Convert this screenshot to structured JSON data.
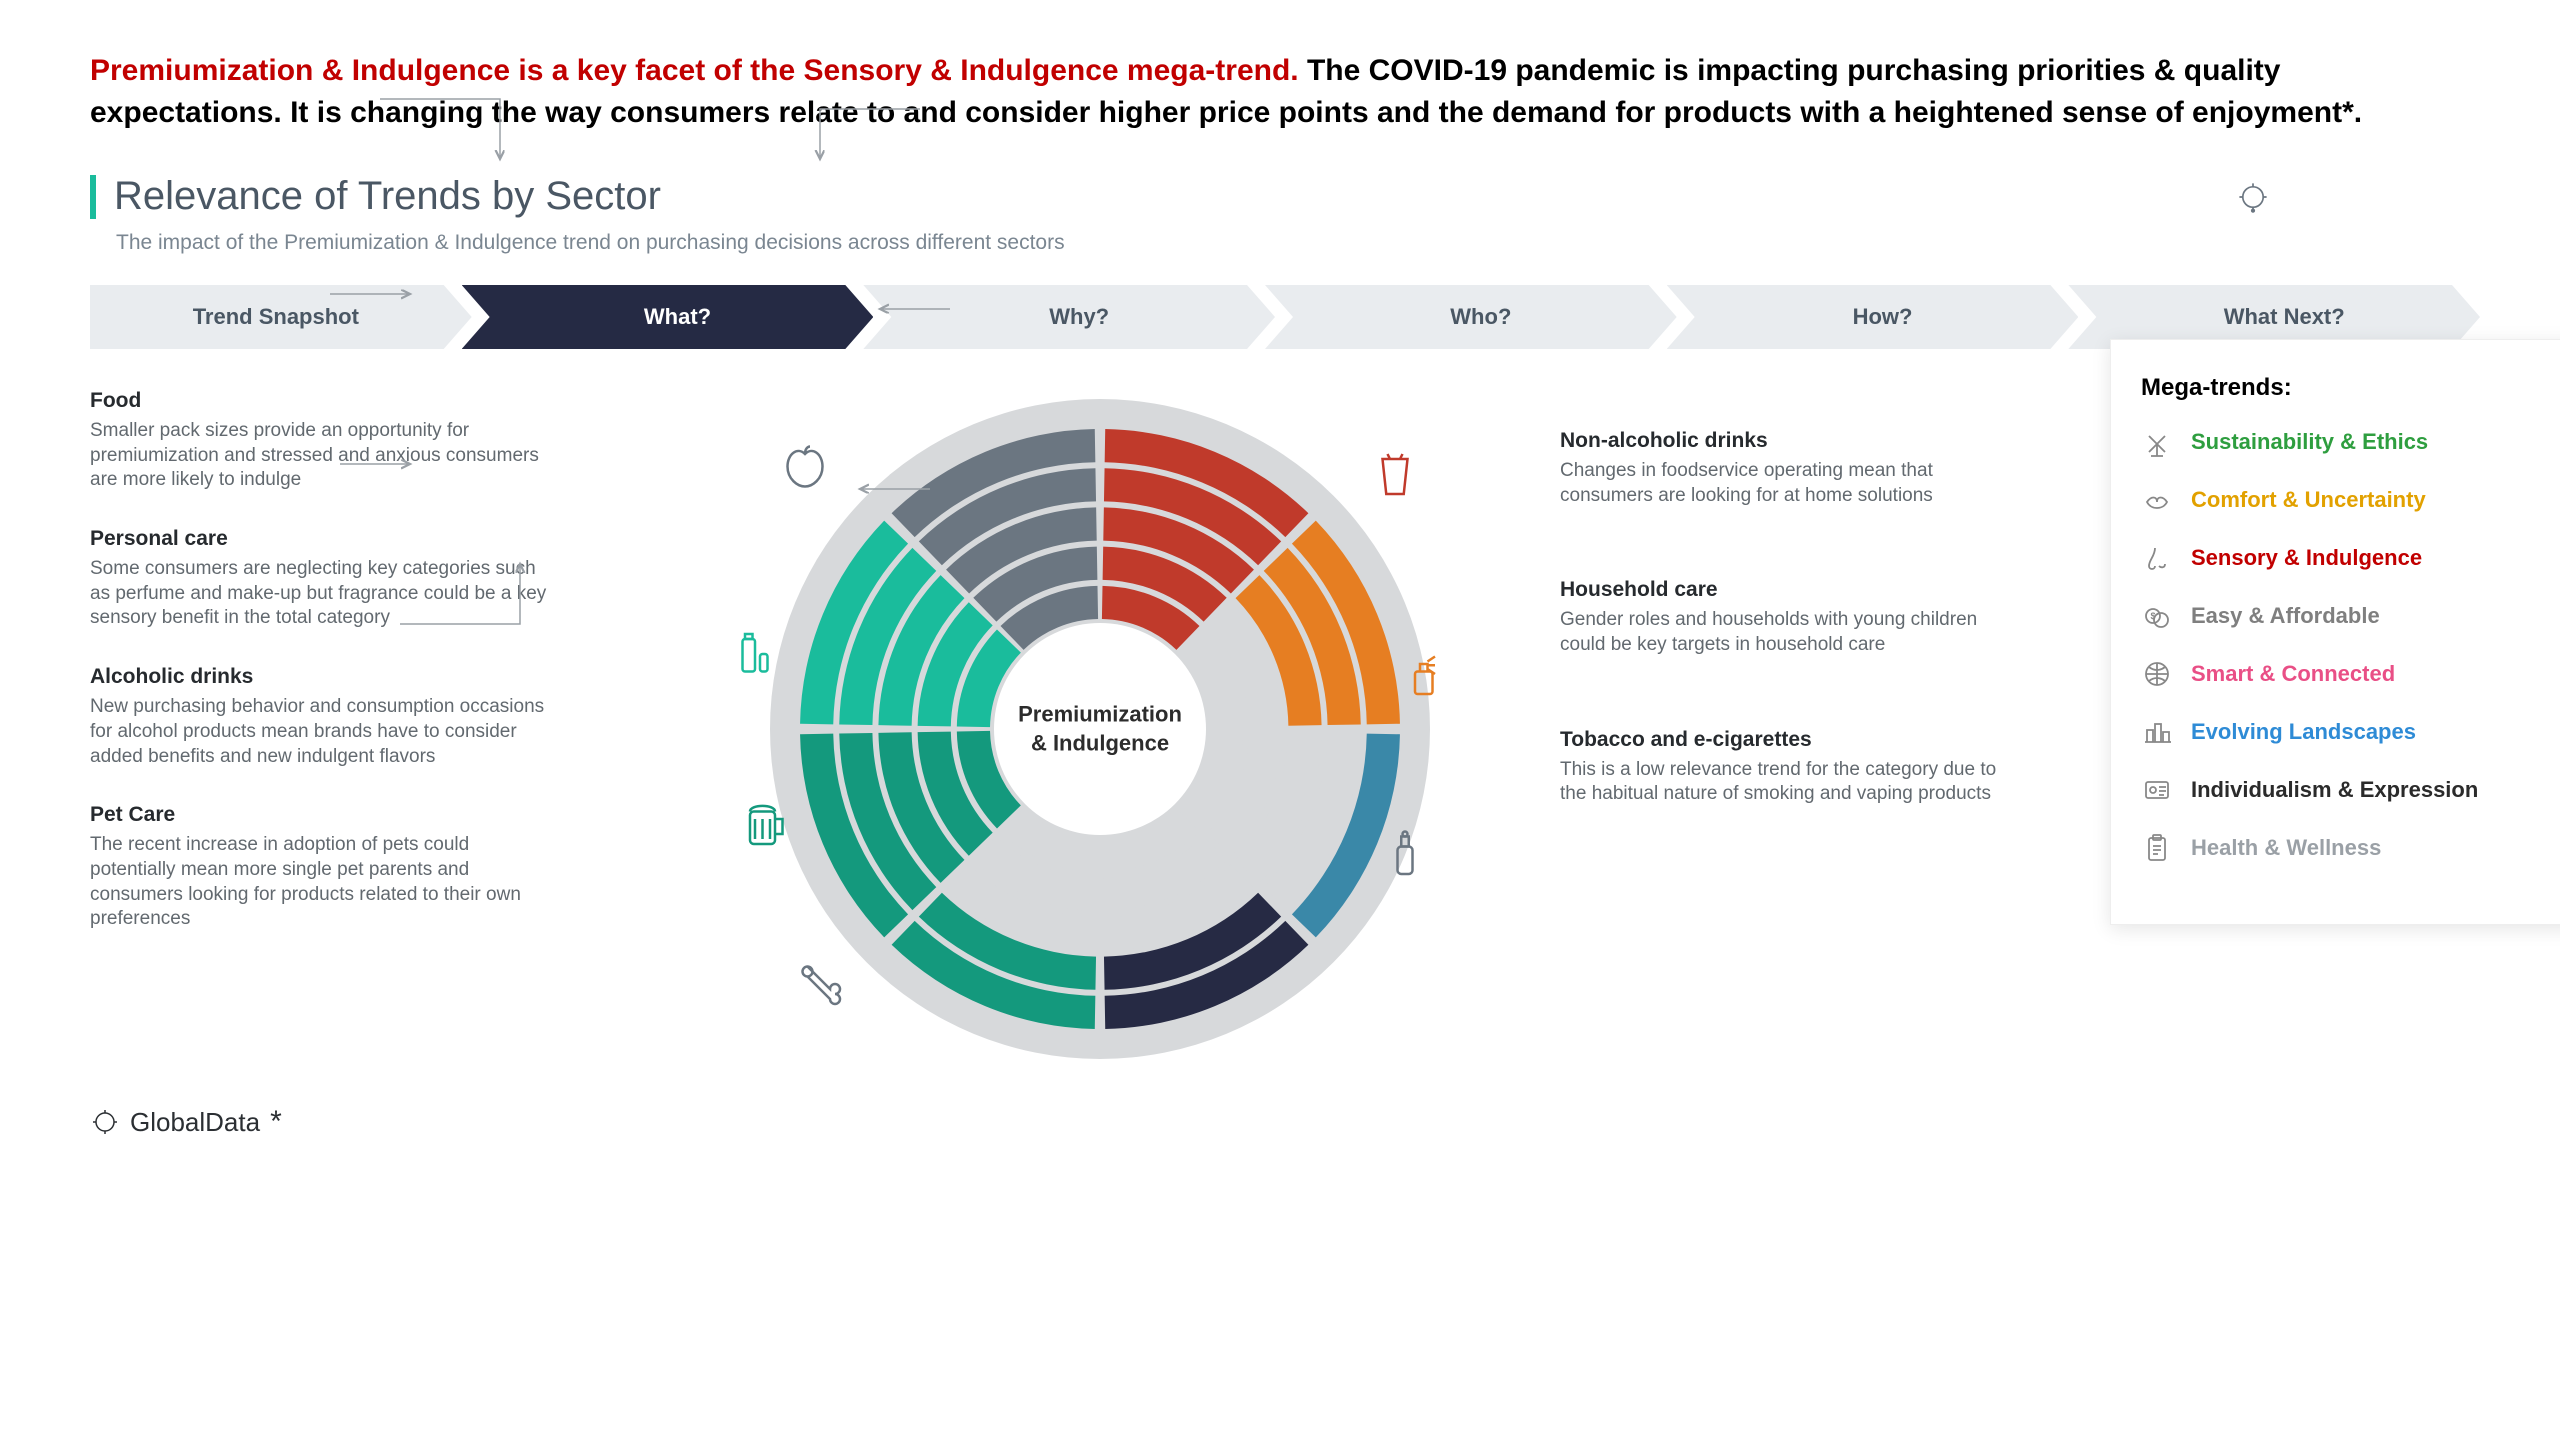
{
  "headline": {
    "red": "Premiumization & Indulgence is a key facet of the Sensory & Indulgence mega-trend.",
    "black": " The COVID-19 pandemic is impacting purchasing priorities & quality expectations. It is changing the way consumers relate to and consider higher price points and the demand for products with a heightened sense of enjoyment*."
  },
  "section": {
    "title": "Relevance of Trends by Sector",
    "subtitle": "The impact of the Premiumization & Indulgence trend on purchasing decisions across different sectors"
  },
  "breadcrumb": {
    "items": [
      "Trend Snapshot",
      "What?",
      "Why?",
      "Who?",
      "How?",
      "What Next?"
    ],
    "active_index": 1
  },
  "center_label_line1": "Premiumization",
  "center_label_line2": "& Indulgence",
  "sectors_left": [
    {
      "title": "Food",
      "desc": "Smaller pack sizes provide an opportunity for premiumization and stressed and anxious consumers are more likely to indulge",
      "icon": "apple",
      "icon_color": "#6b7681"
    },
    {
      "title": "Personal care",
      "desc": "Some consumers are neglecting key categories such as perfume and make-up but fragrance could be a key sensory benefit in the total category",
      "icon": "tube",
      "icon_color": "#1abc9c"
    },
    {
      "title": "Alcoholic drinks",
      "desc": "New purchasing behavior and consumption occasions for alcohol products mean brands have to consider added benefits and new indulgent flavors",
      "icon": "beer",
      "icon_color": "#14997d"
    },
    {
      "title": "Pet Care",
      "desc": "The recent increase in adoption of pets could potentially mean more single pet parents and consumers looking for products related to their own preferences",
      "icon": "bone",
      "icon_color": "#6b7681"
    }
  ],
  "sectors_right": [
    {
      "title": "Non-alcoholic drinks",
      "desc": "Changes in foodservice operating mean that consumers are looking for at home solutions",
      "icon": "cup",
      "icon_color": "#c03a2b"
    },
    {
      "title": "Household care",
      "desc": "Gender roles and households with young children could be key targets in household care",
      "icon": "spray",
      "icon_color": "#e67e22"
    },
    {
      "title": "Tobacco and e-cigarettes",
      "desc": "This is a low relevance trend for the category due to the habitual nature of smoking and vaping products",
      "icon": "bottle",
      "icon_color": "#6b7681"
    }
  ],
  "wheel": {
    "segments": 8,
    "ring_count": 5,
    "segment_colors": {
      "food": [
        "#6b7681",
        "#6b7681",
        "#6b7681",
        "#6b7681",
        "#6b7681"
      ],
      "non_alcoholic": [
        "#c03a2b",
        "#c03a2b",
        "#c03a2b",
        "#c03a2b",
        "#c03a2b"
      ],
      "household": [
        "#e67e22",
        "#e67e22",
        "#e67e22",
        "#d7d9db",
        "#d7d9db"
      ],
      "tobacco": [
        "#3a88a8",
        "#d7d9db",
        "#d7d9db",
        "#d7d9db",
        "#d7d9db"
      ],
      "unknown_br": [
        "#262a44",
        "#262a44",
        "#d7d9db",
        "#d7d9db",
        "#d7d9db"
      ],
      "pet": [
        "#14997d",
        "#14997d",
        "#d7d9db",
        "#d7d9db",
        "#d7d9db"
      ],
      "alcoholic": [
        "#14997d",
        "#14997d",
        "#14997d",
        "#14997d",
        "#14997d"
      ],
      "personal": [
        "#1abc9c",
        "#1abc9c",
        "#1abc9c",
        "#1abc9c",
        "#1abc9c"
      ]
    },
    "segment_order": [
      "food",
      "non_alcoholic",
      "household",
      "tobacco",
      "unknown_br",
      "pet",
      "alcoholic",
      "personal"
    ],
    "ring_inner_r": 110,
    "ring_outer_r": 300,
    "ring_gap": 6,
    "seg_gap_deg": 2,
    "bg_disc_color": "#d7d9db",
    "bg_disc_r": 330,
    "start_angle": -135
  },
  "mega_trends": {
    "title": "Mega-trends:",
    "items": [
      {
        "label": "Sustainability & Ethics",
        "color": "#2e9e3f",
        "icon": "windmill"
      },
      {
        "label": "Comfort & Uncertainty",
        "color": "#e2a100",
        "icon": "hands"
      },
      {
        "label": "Sensory & Indulgence",
        "color": "#c10000",
        "icon": "nose"
      },
      {
        "label": "Easy & Affordable",
        "color": "#7f7f7f",
        "icon": "coins"
      },
      {
        "label": "Smart & Connected",
        "color": "#e94f86",
        "icon": "globe"
      },
      {
        "label": "Evolving Landscapes",
        "color": "#2e8bd6",
        "icon": "city"
      },
      {
        "label": "Individualism & Expression",
        "color": "#2b2b2b",
        "icon": "id"
      },
      {
        "label": "Health & Wellness",
        "color": "#9aa0a6",
        "icon": "clipboard"
      }
    ]
  },
  "footer": {
    "brand": "GlobalData",
    "asterisk": "*"
  },
  "colors": {
    "accent": "#1abc9c",
    "headline_red": "#c10000",
    "text_dark": "#262a2e",
    "text_muted": "#62696f",
    "chev_bg": "#e9ecef",
    "chev_active": "#252a44"
  }
}
